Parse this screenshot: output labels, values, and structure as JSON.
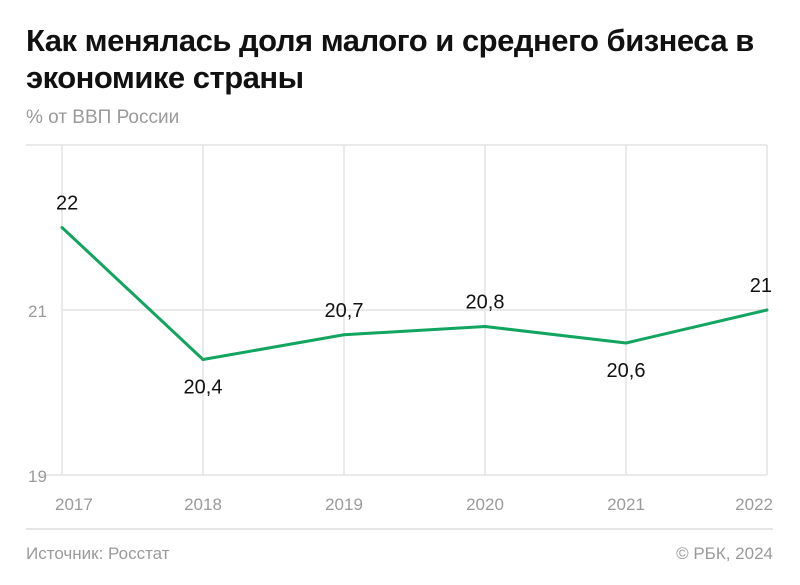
{
  "title": "Как менялась доля малого и среднего бизнеса в экономике страны",
  "subtitle": "% от ВВП России",
  "source": "Источник: Росстат",
  "copyright": "© РБК, 2024",
  "colors": {
    "line": "#12a560",
    "grid": "#e3e3e3",
    "axis_text": "#9a9a9a"
  },
  "chart_data": {
    "type": "line",
    "categories": [
      "2017",
      "2018",
      "2019",
      "2020",
      "2021",
      "2022"
    ],
    "series": [
      {
        "values": [
          22,
          20.4,
          20.7,
          20.8,
          20.6,
          21
        ]
      }
    ],
    "data_labels": [
      "22",
      "20,4",
      "20,7",
      "20,8",
      "20,6",
      "21"
    ],
    "ylim": [
      19,
      23
    ],
    "yticks": [
      19,
      21
    ],
    "ytick_labels": [
      "19",
      "21"
    ],
    "grid": true,
    "ylabel": "% от ВВП России"
  }
}
